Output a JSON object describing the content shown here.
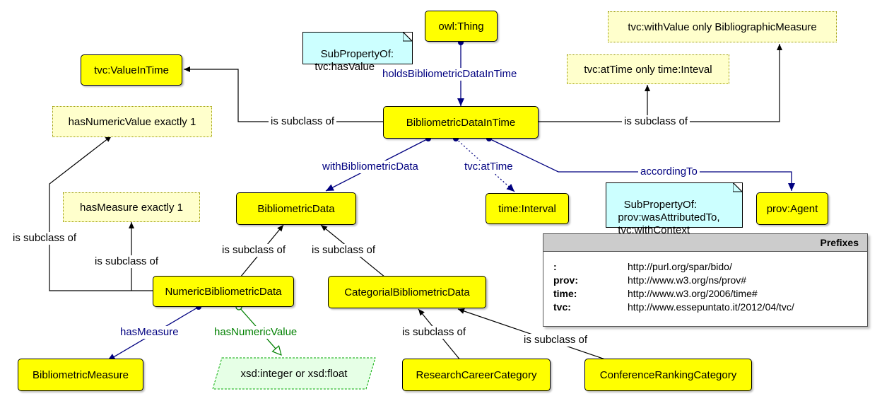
{
  "classes": {
    "owl_thing": "owl:Thing",
    "value_in_time": "tvc:ValueInTime",
    "bibliometric_data_in_time": "BibliometricDataInTime",
    "bibliometric_data": "BibliometricData",
    "time_interval": "time:Interval",
    "prov_agent": "prov:Agent",
    "numeric_bibliometric_data": "NumericBibliometricData",
    "categorial_bibliometric_data": "CategorialBibliometricData",
    "bibliometric_measure": "BibliometricMeasure",
    "research_career_category": "ResearchCareerCategory",
    "conference_ranking_category": "ConferenceRankingCategory"
  },
  "restrictions": {
    "with_value_only": "tvc:withValue only BibliographicMeasure",
    "at_time_only": "tvc:atTime only time:Inteval",
    "has_numeric_value_exactly": "hasNumericValue exactly 1",
    "has_measure_exactly": "hasMeasure exactly 1"
  },
  "datatype": "xsd:integer or xsd:float",
  "notes": {
    "holds_subproperty": "SubPropertyOf:\n  tvc:hasValue",
    "according_subproperty": "SubPropertyOf:\n  prov:wasAttributedTo,\n  tvc:withContext"
  },
  "edge_labels": {
    "holds": "holdsBibliometricDataInTime",
    "with_bibliometric_data": "withBibliometricData",
    "at_time": "tvc:atTime",
    "according_to": "accordingTo",
    "has_measure": "hasMeasure",
    "has_numeric_value": "hasNumericValue",
    "subclass_1": "is subclass of",
    "subclass_2": "is subclass of",
    "subclass_3": "is subclass of",
    "subclass_4": "is subclass of",
    "subclass_5": "is subclass of",
    "subclass_6": "is subclass of",
    "subclass_7": "is subclass of",
    "subclass_8": "is subclass of"
  },
  "colors": {
    "class_fill": "#ffff00",
    "restriction_fill": "#ffffcc",
    "note_fill": "#ccffff",
    "object_property": "#000080",
    "data_property": "#008000",
    "datatype_fill": "#e6ffe6"
  },
  "prefixes": {
    "title": "Prefixes",
    "rows": [
      {
        "prefix": ":",
        "iri": "http://purl.org/spar/bido/"
      },
      {
        "prefix": "prov:",
        "iri": "http://www.w3.org/ns/prov#"
      },
      {
        "prefix": "time:",
        "iri": "http://www.w3.org/2006/time#"
      },
      {
        "prefix": "tvc:",
        "iri": "http://www.essepuntato.it/2012/04/tvc/"
      }
    ]
  }
}
